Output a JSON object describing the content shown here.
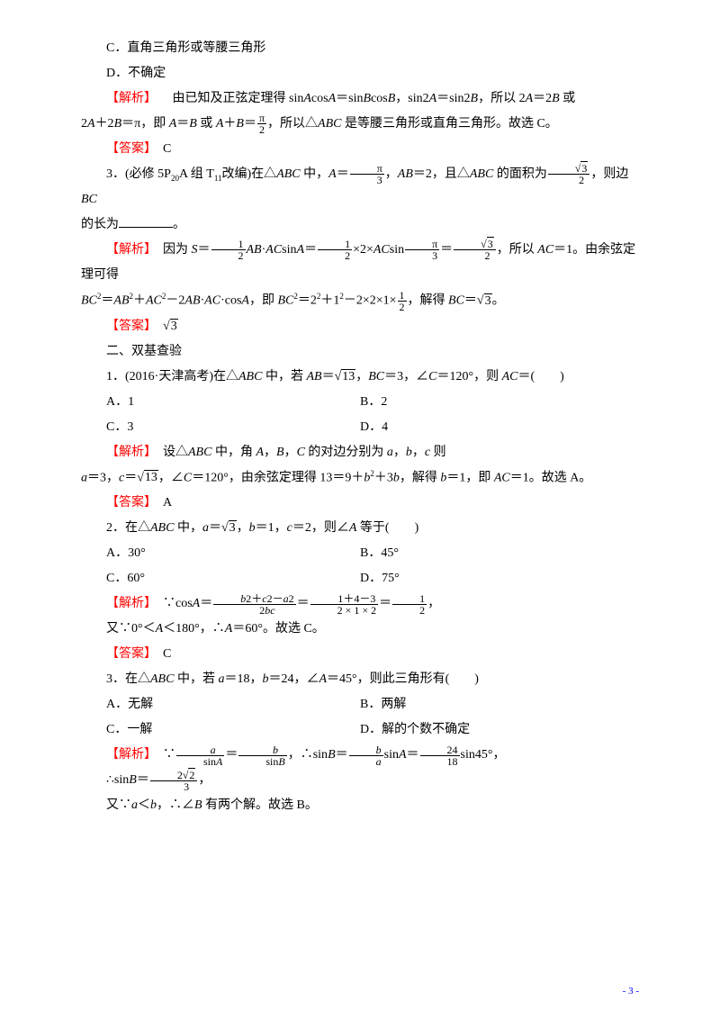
{
  "colors": {
    "text": "#000000",
    "red": "#ff0000",
    "blue": "#0000ff",
    "background": "#ffffff"
  },
  "labels": {
    "analysis": "【解析】",
    "answer": "【答案】"
  },
  "optC": "C．直角三角形或等腰三角形",
  "optD": "D．不确定",
  "p1_ana_a": "　由已知及正弦定理得 sin",
  "p1_ana_b": "cos",
  "p1_ana_c": "＝sin",
  "p1_ana_d": "cos",
  "p1_ana_e": "，sin2",
  "p1_ana_f": "＝sin2",
  "p1_ana_g": "，所以 2",
  "p1_ana_h": "＝2",
  "p1_ana_i": " 或",
  "p1_line2_a": "2",
  "p1_line2_b": "＋2",
  "p1_line2_c": "＝π，即 ",
  "p1_line2_d": "＝",
  "p1_line2_e": " 或 ",
  "p1_line2_f": "＋",
  "p1_line2_g": "＝",
  "p1_line2_h": "，所以△",
  "p1_line2_i": " 是等腰三角形或直角三角形。故选 C。",
  "p1_ans": "　C",
  "q3_a": "3．(必修 5P",
  "q3_b": "A 组 T",
  "q3_c": "改编)在△",
  "q3_d": " 中，",
  "q3_e": "＝",
  "q3_f": "，",
  "q3_g": "＝2，且△",
  "q3_h": " 的面积为",
  "q3_i": "，则边 ",
  "q3_line2": "的长为",
  "q3_ana_a": "　因为 ",
  "q3_ana_b": "＝",
  "q3_ana_c": "·",
  "q3_ana_d": "sin",
  "q3_ana_e": "＝",
  "q3_ana_f": "×2×",
  "q3_ana_g": "sin",
  "q3_ana_h": "＝",
  "q3_ana_i": "，所以 ",
  "q3_ana_j": "＝1。由余弦定理可得",
  "q3_l3_a": "＝",
  "q3_l3_b": "＋",
  "q3_l3_c": "－2",
  "q3_l3_d": "·",
  "q3_l3_e": "·cos",
  "q3_l3_f": "，即 ",
  "q3_l3_g": "＝2",
  "q3_l3_h": "＋1",
  "q3_l3_i": "－2×2×1×",
  "q3_l3_j": "，解得 ",
  "q3_l3_k": "＝",
  "q3_l3_l": "。",
  "q3_ans": "　",
  "section2": "二、双基查验",
  "s2q1_a": "1．(2016·天津高考)在△",
  "s2q1_b": " 中，若 ",
  "s2q1_c": "＝",
  "s2q1_d": "，",
  "s2q1_e": "＝3，∠",
  "s2q1_f": "＝120°，则 ",
  "s2q1_g": "＝(　　)",
  "s2q1_A": "A．1",
  "s2q1_B": "B．2",
  "s2q1_C": "C．3",
  "s2q1_D": "D．4",
  "s2q1_ana_a": "　设△",
  "s2q1_ana_b": " 中，角 ",
  "s2q1_ana_c": "，",
  "s2q1_ana_d": "，",
  "s2q1_ana_e": " 的对边分别为 ",
  "s2q1_ana_f": "，",
  "s2q1_ana_g": "，",
  "s2q1_ana_h": " 则",
  "s2q1_l2_a": "＝3，",
  "s2q1_l2_b": "＝",
  "s2q1_l2_c": "，∠",
  "s2q1_l2_d": "＝120°，由余弦定理得 13＝9＋",
  "s2q1_l2_e": "＋3",
  "s2q1_l2_f": "，解得 ",
  "s2q1_l2_g": "＝1，即 ",
  "s2q1_l2_h": "＝1。故选 A。",
  "s2q1_ans": "　A",
  "s2q2_a": "2．在△",
  "s2q2_b": " 中，",
  "s2q2_c": "＝",
  "s2q2_d": "，",
  "s2q2_e": "＝1，",
  "s2q2_f": "＝2，则∠",
  "s2q2_g": " 等于(　　)",
  "s2q2_A": "A．30°",
  "s2q2_B": "B．45°",
  "s2q2_C": "C．60°",
  "s2q2_D": "D．75°",
  "s2q2_ana_a": "　∵cos",
  "s2q2_ana_b": "＝",
  "s2q2_ana_c": "＝",
  "s2q2_ana_d": "＝",
  "s2q2_ana_e": "，",
  "s2q2_l2": "又∵0°＜",
  "s2q2_l2b": "＜180°，∴",
  "s2q2_l2c": "＝60°。故选 C。",
  "s2q2_ans": "　C",
  "s2q3_a": "3．在△",
  "s2q3_b": " 中，若 ",
  "s2q3_c": "＝18，",
  "s2q3_d": "＝24，∠",
  "s2q3_e": "＝45°，则此三角形有(　　)",
  "s2q3_A": "A．无解",
  "s2q3_B": "B．两解",
  "s2q3_C": "C．一解",
  "s2q3_D": "D．解的个数不确定",
  "s2q3_ana_a": "　∵",
  "s2q3_ana_b": "＝",
  "s2q3_ana_c": "，∴sin",
  "s2q3_ana_d": "＝",
  "s2q3_ana_e": "sin",
  "s2q3_ana_f": "＝",
  "s2q3_ana_g": "sin45°，",
  "s2q3_l2_a": "∴sin",
  "s2q3_l2_b": "＝",
  "s2q3_l2_c": "，",
  "s2q3_l3_a": "又∵",
  "s2q3_l3_b": "＜",
  "s2q3_l3_c": "，∴∠",
  "s2q3_l3_d": " 有两个解。故选 B。",
  "pagenum": "- 3 -",
  "frac_pi_2_num": "π",
  "frac_pi_2_den": "2",
  "frac_pi_3_num": "π",
  "frac_pi_3_den": "3",
  "frac_sqrt3_2_num": "3",
  "frac_sqrt3_2_den": "2",
  "frac_1_2_num": "1",
  "frac_1_2_den": "2",
  "frac_2sqrt2_3_den": "3",
  "frac_b2c2a2_num_b": "2＋",
  "frac_b2c2a2_num_c": "2－",
  "frac_b2c2a2_num_a": "2",
  "frac_b2c2a2_den": "2",
  "frac_143_num": "1＋4－3",
  "frac_143_den": "2 × 1 × 2",
  "sqrt3": "3",
  "sqrt13": "13",
  "sqrt2": "2",
  "P20": "20",
  "T11": "11",
  "sq": "2",
  "n24": "24",
  "n18": "18"
}
